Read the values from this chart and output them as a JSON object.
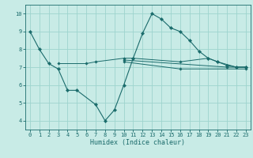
{
  "background_color": "#c8ebe6",
  "grid_color": "#9dd4ce",
  "line_color": "#1a6b6b",
  "xlabel": "Humidex (Indice chaleur)",
  "ylim": [
    3.5,
    10.5
  ],
  "xlim": [
    -0.5,
    23.5
  ],
  "yticks": [
    4,
    5,
    6,
    7,
    8,
    9,
    10
  ],
  "xticks": [
    0,
    1,
    2,
    3,
    4,
    5,
    6,
    7,
    8,
    9,
    10,
    11,
    12,
    13,
    14,
    15,
    16,
    17,
    18,
    19,
    20,
    21,
    22,
    23
  ],
  "series": [
    {
      "x": [
        0,
        1,
        2,
        3,
        4,
        5,
        7,
        8,
        9,
        10,
        11,
        12,
        13,
        14,
        15,
        16,
        17,
        18,
        19,
        20,
        21,
        22,
        23
      ],
      "y": [
        9.0,
        8.0,
        7.2,
        6.9,
        5.7,
        5.7,
        4.9,
        4.0,
        4.6,
        6.0,
        7.5,
        8.9,
        10.0,
        9.7,
        9.2,
        9.0,
        8.5,
        7.9,
        7.5,
        7.3,
        7.1,
        7.0,
        7.0
      ]
    },
    {
      "x": [
        3,
        6,
        7,
        10,
        11,
        16,
        19,
        20,
        22,
        23
      ],
      "y": [
        7.2,
        7.2,
        7.3,
        7.5,
        7.5,
        7.3,
        7.5,
        7.3,
        7.0,
        7.0
      ]
    },
    {
      "x": [
        10,
        21,
        23
      ],
      "y": [
        7.4,
        7.0,
        7.0
      ]
    },
    {
      "x": [
        10,
        16,
        23
      ],
      "y": [
        7.3,
        6.9,
        6.9
      ]
    }
  ]
}
